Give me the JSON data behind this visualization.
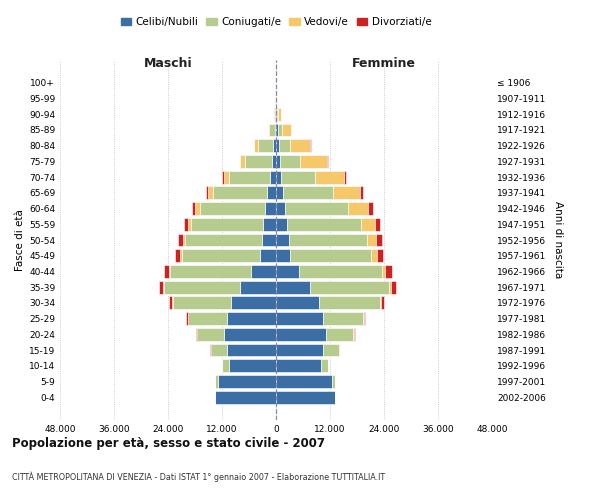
{
  "age_groups": [
    "0-4",
    "5-9",
    "10-14",
    "15-19",
    "20-24",
    "25-29",
    "30-34",
    "35-39",
    "40-44",
    "45-49",
    "50-54",
    "55-59",
    "60-64",
    "65-69",
    "70-74",
    "75-79",
    "80-84",
    "85-89",
    "90-94",
    "95-99",
    "100+"
  ],
  "birth_years": [
    "2002-2006",
    "1997-2001",
    "1992-1996",
    "1987-1991",
    "1982-1986",
    "1977-1981",
    "1972-1976",
    "1967-1971",
    "1962-1966",
    "1957-1961",
    "1952-1956",
    "1947-1951",
    "1942-1946",
    "1937-1941",
    "1932-1936",
    "1927-1931",
    "1922-1926",
    "1917-1921",
    "1912-1916",
    "1907-1911",
    "≤ 1906"
  ],
  "maschi": {
    "celibi": [
      13500,
      13000,
      10500,
      11000,
      11500,
      11000,
      10000,
      8000,
      5500,
      3500,
      3200,
      2800,
      2500,
      2000,
      1400,
      900,
      600,
      300,
      120,
      50,
      20
    ],
    "coniugati": [
      100,
      500,
      1500,
      3500,
      6000,
      8500,
      13000,
      17000,
      18000,
      17500,
      17000,
      16000,
      14500,
      12000,
      9000,
      6000,
      3500,
      1200,
      400,
      100,
      30
    ],
    "vedovi": [
      2,
      5,
      10,
      20,
      50,
      80,
      150,
      200,
      300,
      350,
      500,
      700,
      900,
      1100,
      1200,
      1000,
      700,
      300,
      80,
      20,
      5
    ],
    "divorziati": [
      5,
      10,
      30,
      80,
      180,
      350,
      600,
      900,
      1200,
      1100,
      1000,
      900,
      700,
      500,
      300,
      150,
      80,
      40,
      15,
      5,
      2
    ]
  },
  "femmine": {
    "nubili": [
      13000,
      12500,
      10000,
      10500,
      11000,
      10500,
      9500,
      7500,
      5000,
      3200,
      2800,
      2400,
      2000,
      1600,
      1100,
      800,
      600,
      350,
      150,
      60,
      20
    ],
    "coniugate": [
      120,
      550,
      1600,
      3600,
      6200,
      8800,
      13500,
      17500,
      18500,
      18000,
      17500,
      16500,
      14000,
      11000,
      7500,
      4500,
      2500,
      1000,
      350,
      100,
      30
    ],
    "vedove": [
      3,
      8,
      15,
      30,
      80,
      150,
      300,
      500,
      800,
      1200,
      2000,
      3000,
      4500,
      6000,
      6500,
      6000,
      4500,
      2000,
      600,
      120,
      30
    ],
    "divorziate": [
      5,
      10,
      30,
      80,
      200,
      400,
      700,
      1100,
      1400,
      1300,
      1300,
      1200,
      1000,
      700,
      400,
      200,
      80,
      40,
      15,
      5,
      2
    ]
  },
  "colors": {
    "celibi": "#3A6EA5",
    "coniugati": "#B5CC8E",
    "vedovi": "#F5C96A",
    "divorziati": "#CC2222"
  },
  "xlim": 48000,
  "xticks": [
    -48000,
    -36000,
    -24000,
    -12000,
    0,
    12000,
    24000,
    36000,
    48000
  ],
  "xtick_labels": [
    "48.000",
    "36.000",
    "24.000",
    "12.000",
    "0",
    "12.000",
    "24.000",
    "36.000",
    "48.000"
  ],
  "title": "Popolazione per età, sesso e stato civile - 2007",
  "subtitle": "CITTÀ METROPOLITANA DI VENEZIA - Dati ISTAT 1° gennaio 2007 - Elaborazione TUTTITALIA.IT",
  "ylabel_left": "Fasce di età",
  "ylabel_right": "Anni di nascita",
  "legend_labels": [
    "Celibi/Nubili",
    "Coniugati/e",
    "Vedovi/e",
    "Divorziati/e"
  ],
  "maschi_label": "Maschi",
  "femmine_label": "Femmine",
  "bar_height": 0.82,
  "bar_edgecolor": "white",
  "bar_linewidth": 0.4
}
